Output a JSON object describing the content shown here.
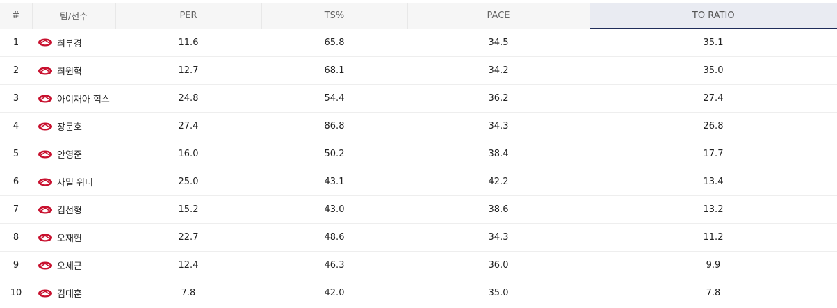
{
  "table": {
    "columns": [
      "#",
      "팀/선수",
      "PER",
      "TS%",
      "PACE",
      "TO RATIO"
    ],
    "rows": [
      [
        "1",
        "최부경",
        "11.6",
        "65.8",
        "34.5",
        "35.1"
      ],
      [
        "2",
        "최원혁",
        "12.7",
        "68.1",
        "34.2",
        "35.0"
      ],
      [
        "3",
        "아이재아 힉스",
        "24.8",
        "54.4",
        "36.2",
        "27.4"
      ],
      [
        "4",
        "장문호",
        "27.4",
        "86.8",
        "34.3",
        "26.8"
      ],
      [
        "5",
        "안영준",
        "16.0",
        "50.2",
        "38.4",
        "17.7"
      ],
      [
        "6",
        "자밀 워니",
        "25.0",
        "43.1",
        "42.2",
        "13.4"
      ],
      [
        "7",
        "김선형",
        "15.2",
        "43.0",
        "38.6",
        "13.2"
      ],
      [
        "8",
        "오재현",
        "22.7",
        "48.6",
        "34.3",
        "11.2"
      ],
      [
        "9",
        "오세근",
        "12.4",
        "46.3",
        "36.0",
        "9.9"
      ],
      [
        "10",
        "김대훈",
        "7.8",
        "42.0",
        "35.0",
        "7.8"
      ]
    ]
  }
}
